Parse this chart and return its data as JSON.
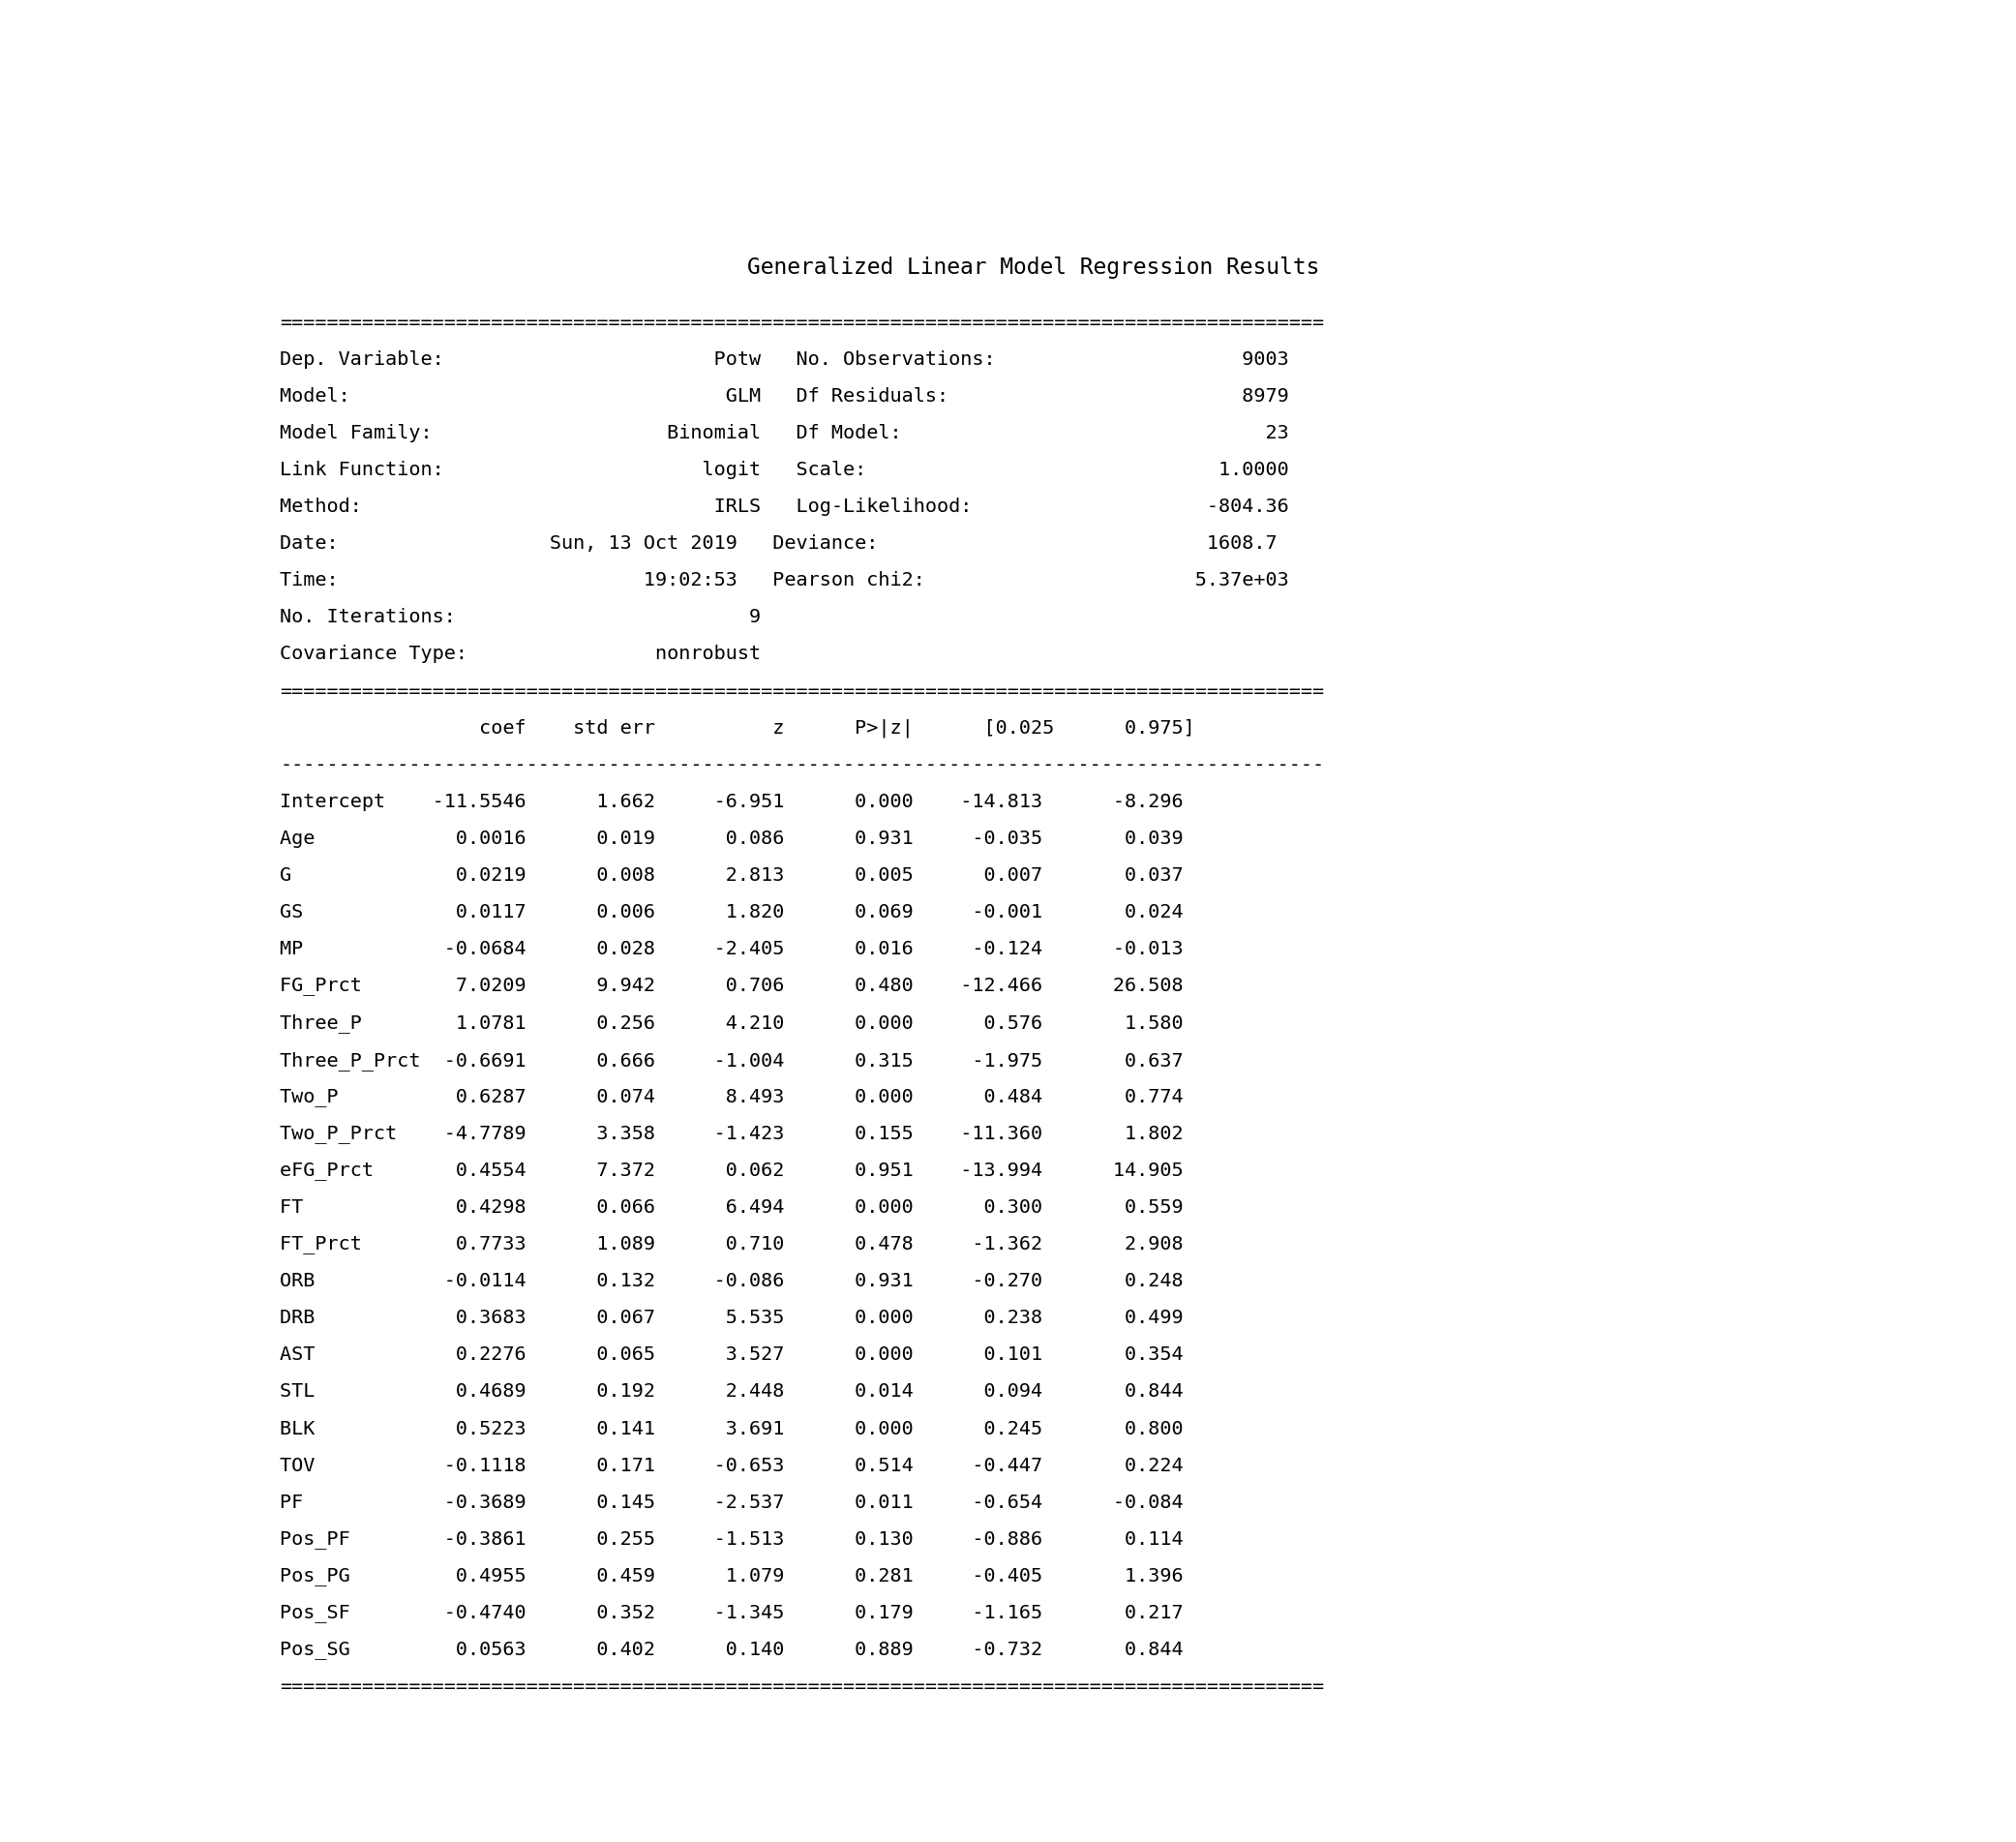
{
  "title": "Generalized Linear Model Regression Results",
  "background_color": "#ffffff",
  "text_color": "#000000",
  "font_family": "DejaVu Sans Mono",
  "font_size": 14.5,
  "title_font_size": 16.5,
  "content": [
    "=========================================================================================",
    "Dep. Variable:                       Potw   No. Observations:                     9003",
    "Model:                                GLM   Df Residuals:                         8979",
    "Model Family:                    Binomial   Df Model:                               23",
    "Link Function:                      logit   Scale:                              1.0000",
    "Method:                              IRLS   Log-Likelihood:                    -804.36",
    "Date:                  Sun, 13 Oct 2019   Deviance:                            1608.7",
    "Time:                          19:02:53   Pearson chi2:                       5.37e+03",
    "No. Iterations:                         9",
    "Covariance Type:                nonrobust",
    "=========================================================================================",
    "                 coef    std err          z      P>|z|      [0.025      0.975]",
    "-----------------------------------------------------------------------------------------",
    "Intercept    -11.5546      1.662     -6.951      0.000    -14.813      -8.296",
    "Age            0.0016      0.019      0.086      0.931     -0.035       0.039",
    "G              0.0219      0.008      2.813      0.005      0.007       0.037",
    "GS             0.0117      0.006      1.820      0.069     -0.001       0.024",
    "MP            -0.0684      0.028     -2.405      0.016     -0.124      -0.013",
    "FG_Prct        7.0209      9.942      0.706      0.480    -12.466      26.508",
    "Three_P        1.0781      0.256      4.210      0.000      0.576       1.580",
    "Three_P_Prct  -0.6691      0.666     -1.004      0.315     -1.975       0.637",
    "Two_P          0.6287      0.074      8.493      0.000      0.484       0.774",
    "Two_P_Prct    -4.7789      3.358     -1.423      0.155    -11.360       1.802",
    "eFG_Prct       0.4554      7.372      0.062      0.951    -13.994      14.905",
    "FT             0.4298      0.066      6.494      0.000      0.300       0.559",
    "FT_Prct        0.7733      1.089      0.710      0.478     -1.362       2.908",
    "ORB           -0.0114      0.132     -0.086      0.931     -0.270       0.248",
    "DRB            0.3683      0.067      5.535      0.000      0.238       0.499",
    "AST            0.2276      0.065      3.527      0.000      0.101       0.354",
    "STL            0.4689      0.192      2.448      0.014      0.094       0.844",
    "BLK            0.5223      0.141      3.691      0.000      0.245       0.800",
    "TOV           -0.1118      0.171     -0.653      0.514     -0.447       0.224",
    "PF            -0.3689      0.145     -2.537      0.011     -0.654      -0.084",
    "Pos_PF        -0.3861      0.255     -1.513      0.130     -0.886       0.114",
    "Pos_PG         0.4955      0.459      1.079      0.281     -0.405       1.396",
    "Pos_SF        -0.4740      0.352     -1.345      0.179     -1.165       0.217",
    "Pos_SG         0.0563      0.402      0.140      0.889     -0.732       0.844",
    "========================================================================================="
  ]
}
